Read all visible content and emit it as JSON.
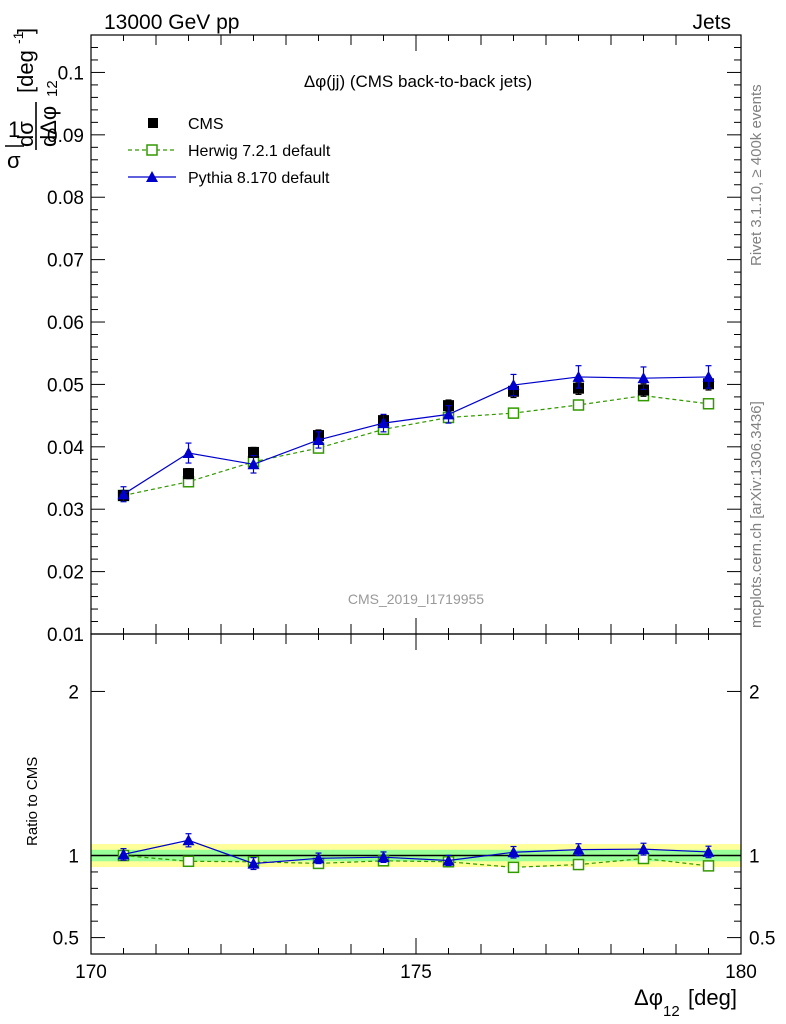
{
  "header": {
    "left": "13000 GeV pp",
    "right": "Jets"
  },
  "title": "Δφ(jj) (CMS back-to-back jets)",
  "analysis_id": "CMS_2019_I1719955",
  "side_labels": {
    "rivet": "Rivet 3.1.10, ≥ 400k events",
    "mcplots": "mcplots.cern.ch [arXiv:1306.3436]"
  },
  "y_label": {
    "one": "1",
    "dsigma": "dσ",
    "sigma": "σ",
    "dphi": "dΔφ",
    "sub": "12",
    "unit": "[deg",
    "unit_exp": "-1",
    "unit_close": "]"
  },
  "x_label": {
    "main": "Δφ",
    "sub": "12",
    "unit": "[deg]"
  },
  "ratio_label": "Ratio to CMS",
  "chart_data": {
    "type": "line",
    "x": [
      170.5,
      171.5,
      172.5,
      173.5,
      174.5,
      175.5,
      176.5,
      177.5,
      178.5,
      179.5
    ],
    "xlim": [
      170,
      180
    ],
    "xticks": [
      "170",
      "175",
      "180"
    ],
    "top_panel": {
      "ylim": [
        0.01,
        0.106
      ],
      "yticks": [
        "0.01",
        "0.02",
        "0.03",
        "0.04",
        "0.05",
        "0.06",
        "0.07",
        "0.08",
        "0.09",
        "0.1"
      ],
      "series": [
        {
          "name": "CMS",
          "style": "square",
          "color": "#000000",
          "values": [
            0.0322,
            0.0357,
            0.0391,
            0.0418,
            0.0442,
            0.0466,
            0.0489,
            0.0494,
            0.0491,
            0.0501
          ],
          "errors": [
            0.0008,
            0.0008,
            0.0008,
            0.0009,
            0.0009,
            0.0009,
            0.001,
            0.001,
            0.001,
            0.001
          ]
        },
        {
          "name": "Herwig 7.2.1 default",
          "style": "open-square-dashed",
          "color": "#339900",
          "values": [
            0.0322,
            0.0344,
            0.0376,
            0.0398,
            0.0428,
            0.0447,
            0.0454,
            0.0467,
            0.0482,
            0.0469
          ],
          "errors": [
            0,
            0,
            0,
            0,
            0,
            0,
            0,
            0,
            0,
            0
          ]
        },
        {
          "name": "Pythia 8.170 default",
          "style": "triangle-solid",
          "color": "#0000cc",
          "values": [
            0.0324,
            0.039,
            0.0372,
            0.0411,
            0.0438,
            0.0452,
            0.0499,
            0.0512,
            0.051,
            0.0512
          ],
          "errors": [
            0.0012,
            0.0016,
            0.0014,
            0.0013,
            0.0014,
            0.0014,
            0.0017,
            0.0018,
            0.0018,
            0.0018
          ]
        }
      ]
    },
    "ratio_panel": {
      "ylim": [
        0.4,
        2.35
      ],
      "yticks": [
        "0.5",
        "1",
        "2"
      ],
      "band_total": 0.07,
      "band_stat": 0.035,
      "series": [
        {
          "name": "Herwig 7.2.1 default",
          "values": [
            1.0,
            0.965,
            0.962,
            0.952,
            0.968,
            0.962,
            0.928,
            0.945,
            0.982,
            0.937
          ]
        },
        {
          "name": "Pythia 8.170 default",
          "values": [
            1.007,
            1.093,
            0.951,
            0.983,
            0.99,
            0.97,
            1.02,
            1.036,
            1.039,
            1.022
          ],
          "errors": [
            0.035,
            0.04,
            0.036,
            0.032,
            0.032,
            0.031,
            0.035,
            0.036,
            0.036,
            0.035
          ]
        }
      ]
    },
    "colors": {
      "band_total": "#ffff99",
      "band_stat": "#99ff99",
      "reference_line": "#000000"
    }
  }
}
